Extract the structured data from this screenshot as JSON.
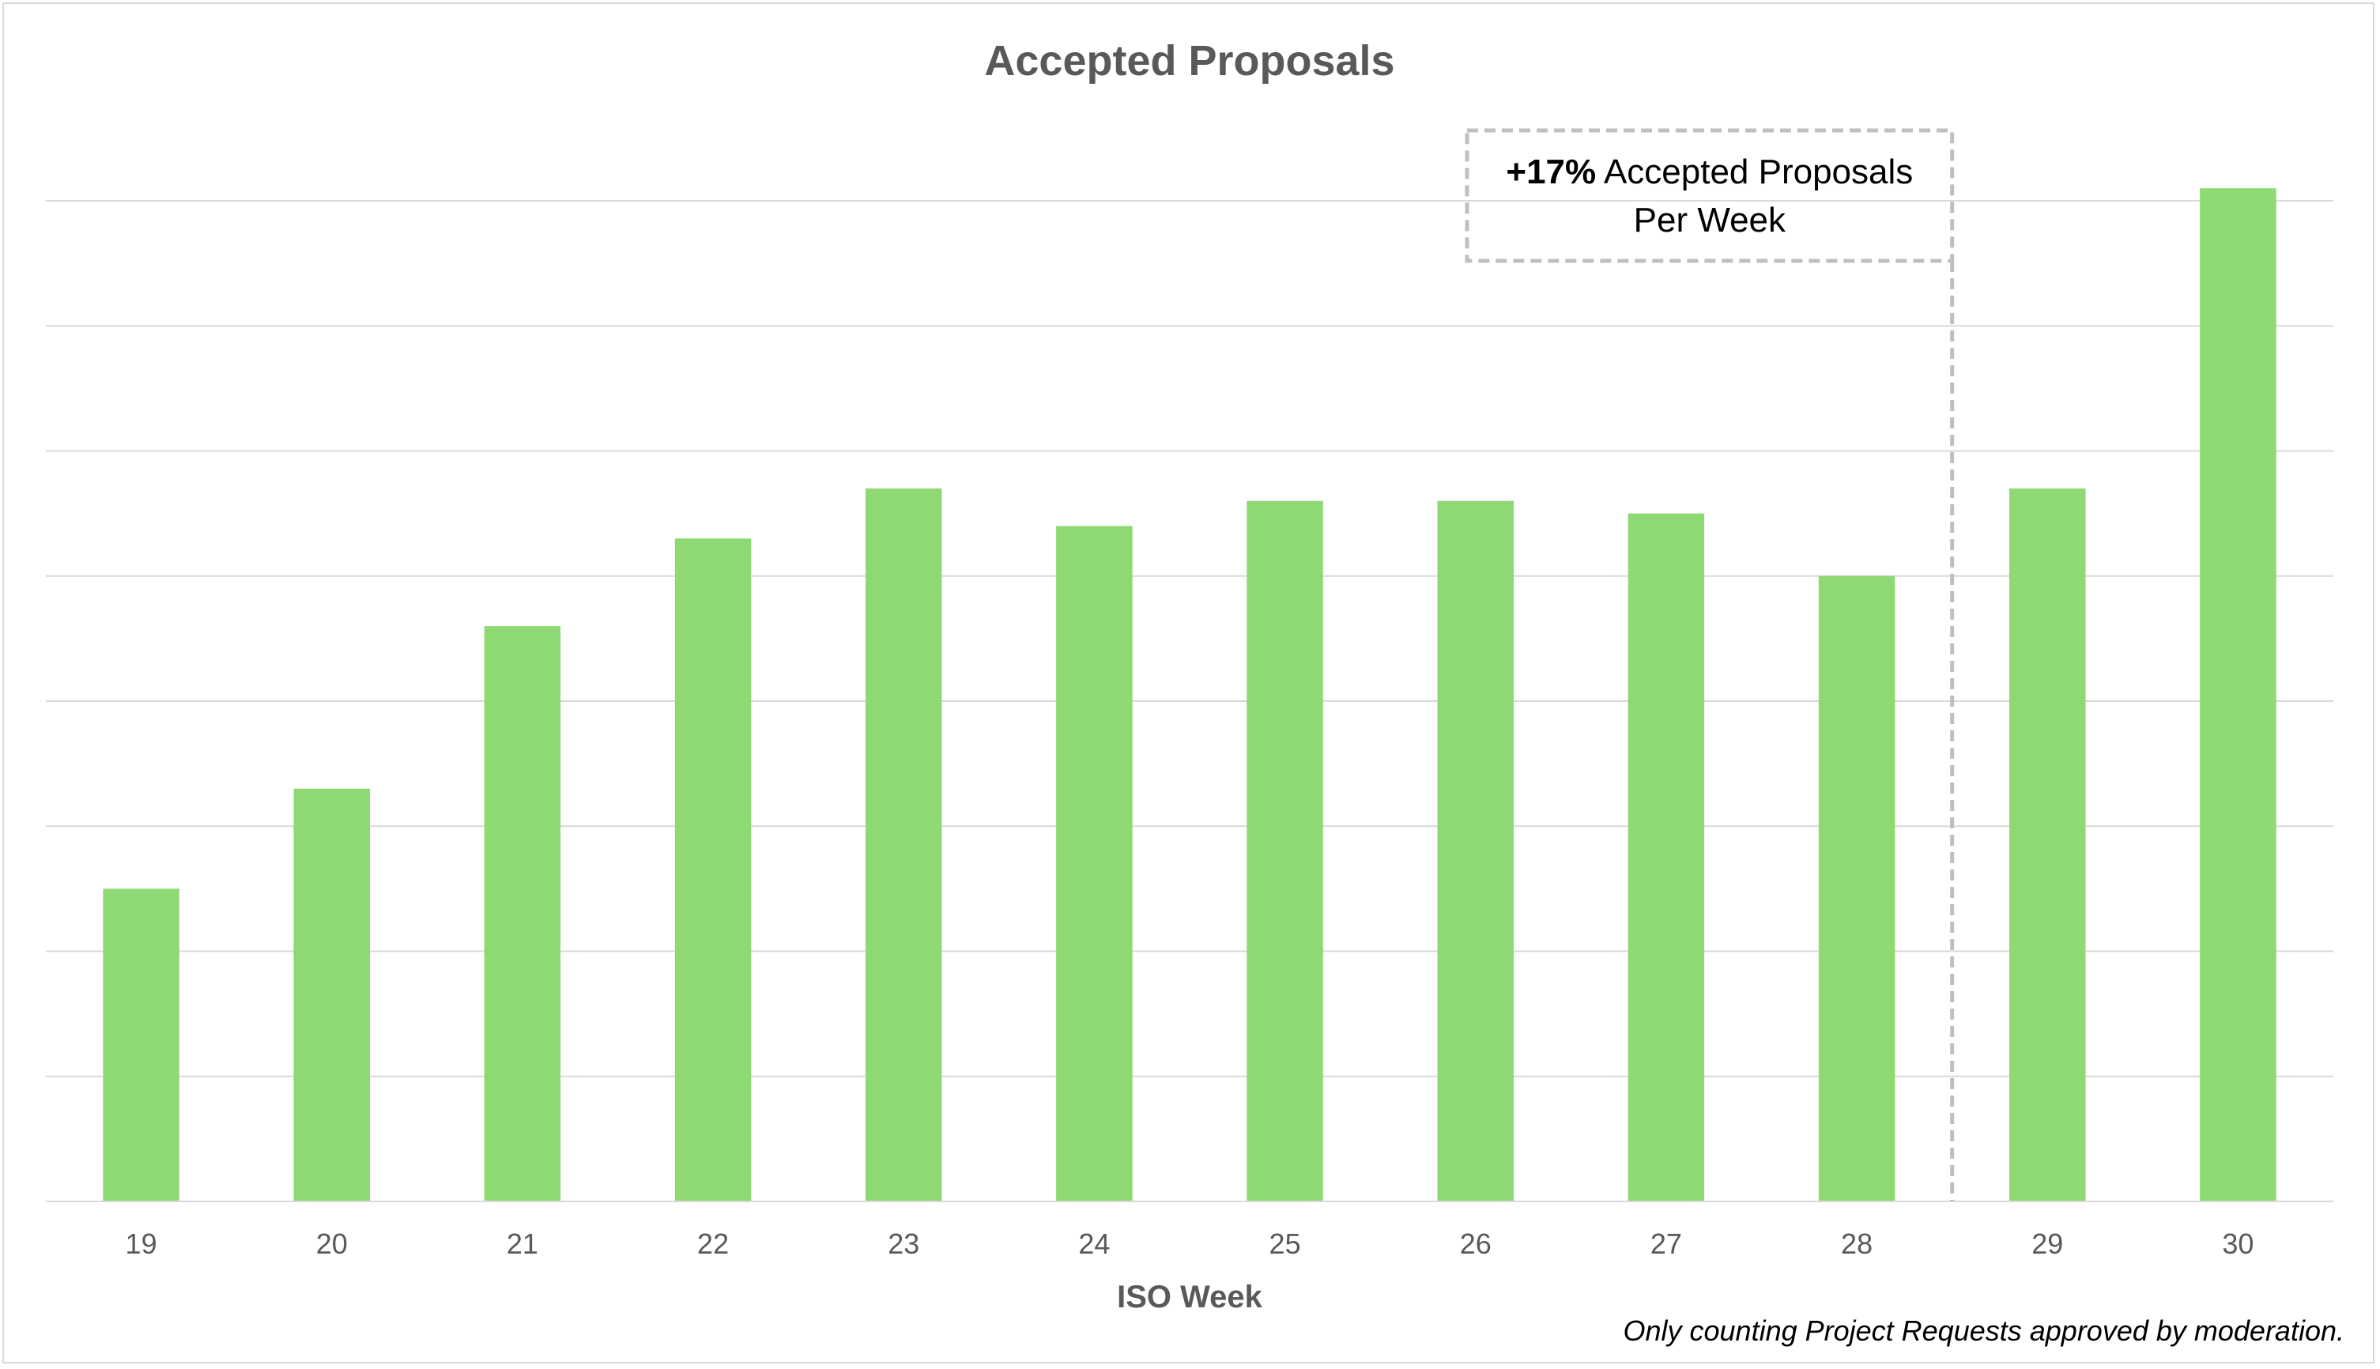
{
  "chart_data": {
    "type": "bar",
    "title": "Accepted Proposals",
    "xlabel": "ISO Week",
    "ylabel": "",
    "categories": [
      "19",
      "20",
      "21",
      "22",
      "23",
      "24",
      "25",
      "26",
      "27",
      "28",
      "29",
      "30"
    ],
    "values": [
      25,
      33,
      46,
      53,
      57,
      54,
      56,
      56,
      55,
      50,
      57,
      81
    ],
    "ylim": [
      0,
      80
    ],
    "y_tick_labels_visible": false,
    "grid": true,
    "bar_color": "#8ed973",
    "gridline_color": "#d9d9d9",
    "annotation": {
      "bold_text": "+17%",
      "text_line1": " Accepted Proposals",
      "text_line2": "Per Week",
      "position_between_categories": [
        "28",
        "29"
      ]
    },
    "footnote": "Only counting Project Requests approved by moderation."
  }
}
